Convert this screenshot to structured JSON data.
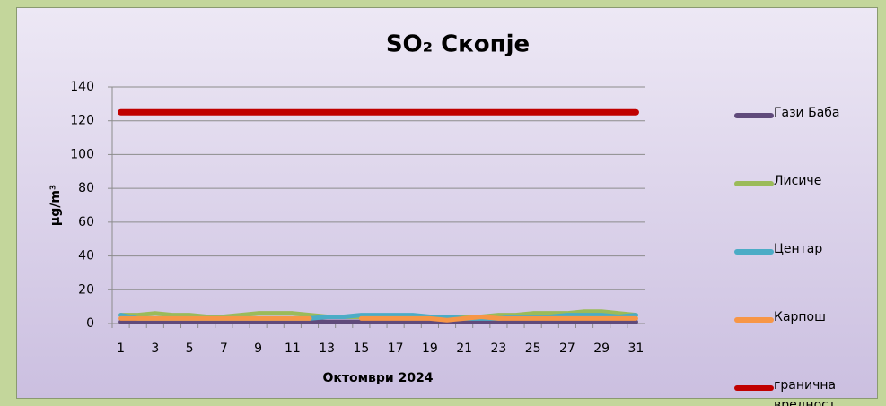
{
  "chart_data": {
    "type": "line",
    "title": "SO₂ Скопје",
    "x_label": "Октомври 2024",
    "y_label": "µg/m³",
    "categories": [
      "1",
      null,
      "3",
      null,
      "5",
      null,
      "7",
      null,
      "9",
      null,
      "11",
      null,
      "13",
      null,
      "15",
      null,
      "17",
      null,
      "19",
      null,
      "21",
      null,
      "23",
      null,
      "25",
      null,
      "27",
      null,
      "29",
      null,
      "31"
    ],
    "series": [
      {
        "name": "Гази Баба",
        "color": "#604a7b",
        "values": [
          1,
          1,
          1,
          1,
          1,
          1,
          1,
          1,
          1,
          1,
          1,
          1,
          1,
          1,
          1,
          1,
          1,
          1,
          1,
          1,
          1,
          1,
          1,
          1,
          1,
          1,
          1,
          1,
          1,
          1,
          1
        ]
      },
      {
        "name": "Лисиче",
        "color": "#9bbb59",
        "values": [
          5,
          5,
          6,
          5,
          5,
          4,
          4,
          5,
          6,
          6,
          6,
          5,
          4,
          4,
          4,
          4,
          4,
          4,
          4,
          4,
          4,
          4,
          5,
          5,
          6,
          6,
          6,
          7,
          7,
          6,
          5
        ]
      },
      {
        "name": "Центар",
        "color": "#4bacc6",
        "values": [
          5,
          3,
          3,
          3,
          3,
          3,
          3,
          3,
          3,
          3,
          3,
          3,
          4,
          4,
          5,
          5,
          5,
          5,
          4,
          4,
          3,
          3,
          3,
          4,
          4,
          4,
          5,
          5,
          5,
          4,
          5
        ]
      },
      {
        "name": "Карпош",
        "color": "#f79646",
        "values": [
          3,
          3,
          3,
          3,
          3,
          3,
          3,
          3,
          3,
          3,
          3,
          3,
          null,
          null,
          3,
          3,
          3,
          3,
          3,
          2,
          3,
          4,
          3,
          3,
          3,
          3,
          3,
          3,
          3,
          3,
          3
        ]
      },
      {
        "name": "гранична вредност",
        "color": "#c00000",
        "values": [
          125,
          125,
          125,
          125,
          125,
          125,
          125,
          125,
          125,
          125,
          125,
          125,
          125,
          125,
          125,
          125,
          125,
          125,
          125,
          125,
          125,
          125,
          125,
          125,
          125,
          125,
          125,
          125,
          125,
          125,
          125
        ]
      }
    ],
    "ylim": [
      0,
      140
    ],
    "yticks": [
      0,
      20,
      40,
      60,
      80,
      100,
      120,
      140
    ],
    "grid": true,
    "legend": "right"
  }
}
